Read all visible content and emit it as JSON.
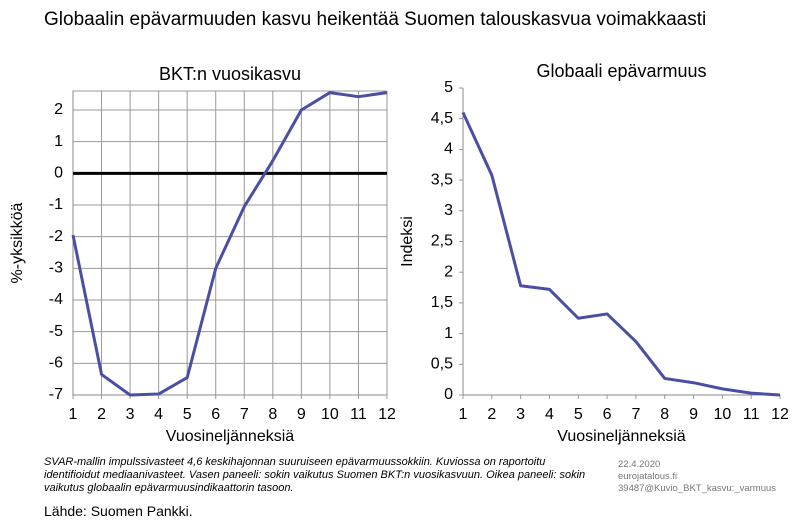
{
  "title": "Globaalin epävarmuuden kasvu heikentää Suomen talouskasvua voimakkaasti",
  "note": "SVAR-mallin impulssivasteet 4,6 keskihajonnan suuruiseen epävarmuussokkiin. Kuviossa on raportoitu identifioidut mediaanivasteet. Vasen paneeli: sokin vaikutus Suomen BKT:n vuosikasvuun. Oikea paneeli: sokin vaikutus globaalin epävarmuusindikaattorin tasoon.",
  "source": "Lähde: Suomen Pankki.",
  "date": "22.4.2020",
  "site": "eurojatalous.fi",
  "file": "39487@Kuvio_BKT_kasvu:_varmuus",
  "chart_data": [
    {
      "type": "line",
      "title": "BKT:n vuosikasvu",
      "x_label": "Vuosineljänneksiä",
      "y_label": "%-yksikköä",
      "x": [
        1,
        2,
        3,
        4,
        5,
        6,
        7,
        8,
        9,
        10,
        11,
        12
      ],
      "series": [
        {
          "color": "#4b4fa3",
          "values": [
            -1.95,
            -6.35,
            -7.0,
            -6.97,
            -6.45,
            -3.0,
            -1.05,
            0.4,
            2.0,
            2.55,
            2.42,
            2.55
          ]
        }
      ],
      "xlim": [
        1,
        12
      ],
      "xticks": [
        1,
        2,
        3,
        4,
        5,
        6,
        7,
        8,
        9,
        10,
        11,
        12
      ],
      "ylim": [
        -7,
        2.6
      ],
      "yticks": [
        -7,
        -6,
        -5,
        -4,
        -3,
        -2,
        -1,
        0,
        1,
        2
      ],
      "grid": true
    },
    {
      "type": "line",
      "title": "Globaali epävarmuus",
      "x_label": "Vuosineljänneksiä",
      "y_label": "Indeksi",
      "x": [
        1,
        2,
        3,
        4,
        5,
        6,
        7,
        8,
        9,
        10,
        11,
        12
      ],
      "series": [
        {
          "color": "#4b4fa3",
          "values": [
            4.6,
            3.58,
            1.78,
            1.72,
            1.25,
            1.32,
            0.87,
            0.27,
            0.2,
            0.1,
            0.03,
            0
          ]
        }
      ],
      "xlim": [
        1,
        12
      ],
      "xticks": [
        1,
        2,
        3,
        4,
        5,
        6,
        7,
        8,
        9,
        10,
        11,
        12
      ],
      "ylim": [
        0,
        5
      ],
      "yticks": [
        0,
        {
          "value": 0.5,
          "label": "0,5"
        },
        1,
        {
          "value": 1.5,
          "label": "1,5"
        },
        2,
        {
          "value": 2.5,
          "label": "2,5"
        },
        3,
        {
          "value": 3.5,
          "label": "3,5"
        },
        4,
        {
          "value": 4.5,
          "label": "4,5"
        },
        5
      ],
      "grid": false
    }
  ]
}
